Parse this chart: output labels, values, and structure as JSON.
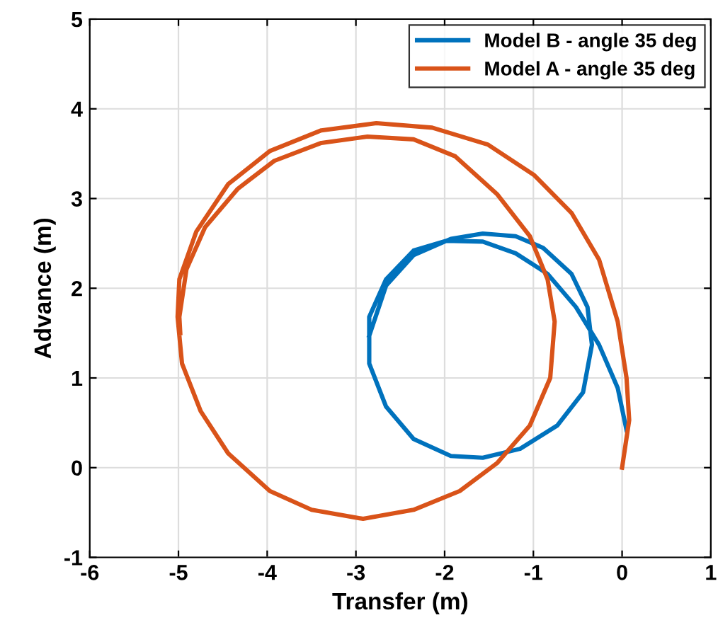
{
  "chart_data": {
    "type": "line",
    "xlabel": "Transfer (m)",
    "ylabel": "Advance (m)",
    "xlim": [
      -6,
      1
    ],
    "ylim": [
      -1,
      5
    ],
    "xticks": [
      -6,
      -5,
      -4,
      -3,
      -2,
      -1,
      0,
      1
    ],
    "yticks": [
      -1,
      0,
      1,
      2,
      3,
      4,
      5
    ],
    "grid": true,
    "legend": "top right",
    "marker": "none",
    "line_style": "solid",
    "series": [
      {
        "name": "Model B - angle 35 deg",
        "color": "#0072bd",
        "x": [
          0.05,
          -0.05,
          -0.26,
          -0.52,
          -0.84,
          -1.2,
          -1.57,
          -1.98,
          -2.35,
          -2.66,
          -2.85,
          -2.85,
          -2.66,
          -2.35,
          -1.93,
          -1.57,
          -1.15,
          -0.73,
          -0.44,
          -0.34,
          -0.39,
          -0.57,
          -0.89,
          -1.2,
          -1.57,
          -1.93,
          -2.35,
          -2.66,
          -2.85
        ],
        "values": [
          0.42,
          0.89,
          1.37,
          1.79,
          2.16,
          2.39,
          2.52,
          2.53,
          2.42,
          2.1,
          1.68,
          1.16,
          0.68,
          0.32,
          0.13,
          0.11,
          0.21,
          0.47,
          0.84,
          1.37,
          1.79,
          2.16,
          2.45,
          2.58,
          2.61,
          2.55,
          2.37,
          2.03,
          1.47
        ]
      },
      {
        "name": "Model A - angle 35 deg",
        "color": "#d95319",
        "x": [
          0,
          0.08,
          0.05,
          -0.05,
          -0.26,
          -0.57,
          -0.99,
          -1.51,
          -2.14,
          -2.77,
          -3.39,
          -3.97,
          -4.44,
          -4.8,
          -4.99,
          -5.01,
          -4.96,
          -4.75,
          -4.44,
          -3.97,
          -3.5,
          -2.92,
          -2.35,
          -1.83,
          -1.41,
          -1.04,
          -0.81,
          -0.76,
          -0.84,
          -1.04,
          -1.41,
          -1.88,
          -2.35,
          -2.87,
          -3.39,
          -3.92,
          -4.33,
          -4.7,
          -4.91,
          -4.99,
          -4.98
        ],
        "values": [
          0,
          0.53,
          1.0,
          1.63,
          2.32,
          2.84,
          3.26,
          3.6,
          3.79,
          3.84,
          3.76,
          3.53,
          3.16,
          2.63,
          2.1,
          1.68,
          1.16,
          0.63,
          0.16,
          -0.26,
          -0.47,
          -0.57,
          -0.47,
          -0.26,
          0.05,
          0.47,
          1.0,
          1.63,
          2.1,
          2.58,
          3.05,
          3.47,
          3.66,
          3.69,
          3.62,
          3.42,
          3.11,
          2.68,
          2.21,
          1.68,
          1.5
        ]
      }
    ]
  }
}
